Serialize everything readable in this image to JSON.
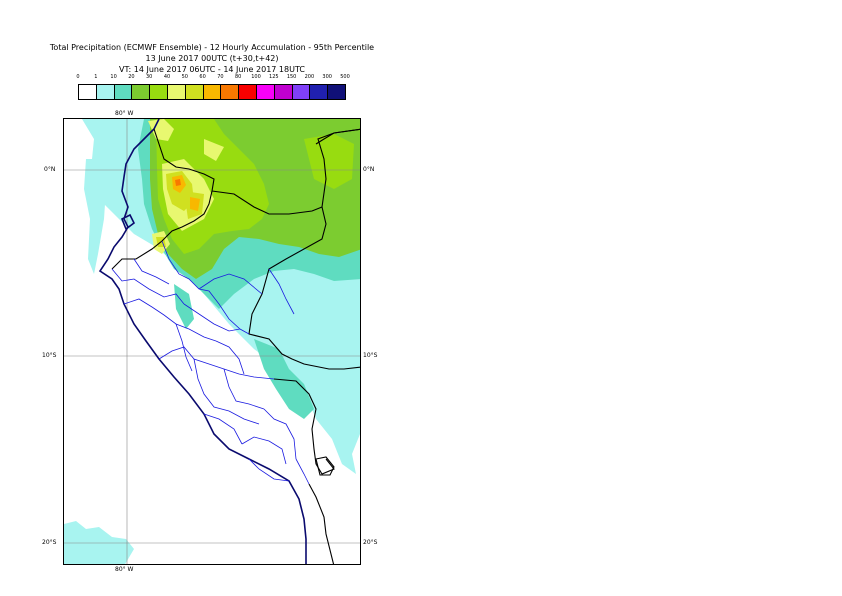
{
  "title": {
    "line1": "Total Precipitation (ECMWF Ensemble) - 12 Hourly Accumulation - 95th Percentile",
    "line2": "13 June 2017 00UTC (t+30,t+42)",
    "line3": "VT: 14 June 2017 06UTC - 14 June 2017 18UTC"
  },
  "legend": {
    "thresholds": [
      "0",
      "1",
      "10",
      "20",
      "30",
      "40",
      "50",
      "60",
      "70",
      "80",
      "100",
      "125",
      "150",
      "200",
      "300",
      "500"
    ],
    "colors": [
      "#ffffff",
      "#a8f4f0",
      "#5fdcc0",
      "#7ccc30",
      "#98dc10",
      "#e8f870",
      "#d0e020",
      "#f8b800",
      "#f87800",
      "#f80000",
      "#f800f8",
      "#c000d0",
      "#8040f8",
      "#2020b0",
      "#101078"
    ]
  },
  "axes": {
    "lon_top": "80° W",
    "lon_bottom": "80° W",
    "lat_0_left": "0°N",
    "lat_0_right": "0°N",
    "lat_10_left": "10°S",
    "lat_10_right": "10°S",
    "lat_20_left": "20°S",
    "lat_20_right": "20°S"
  },
  "map_colors": {
    "light": "#a8f4f0",
    "teal": "#5fdcc0",
    "green": "#7ccc30",
    "yellowgreen": "#98dc10",
    "pale_yellow": "#e8f870",
    "yellow": "#d0e020",
    "orange": "#f8b800",
    "dark_orange": "#f87800",
    "coast": "#0a0a6e",
    "border": "#000000",
    "admin": "#1a1ae0",
    "grid": "#888888"
  }
}
